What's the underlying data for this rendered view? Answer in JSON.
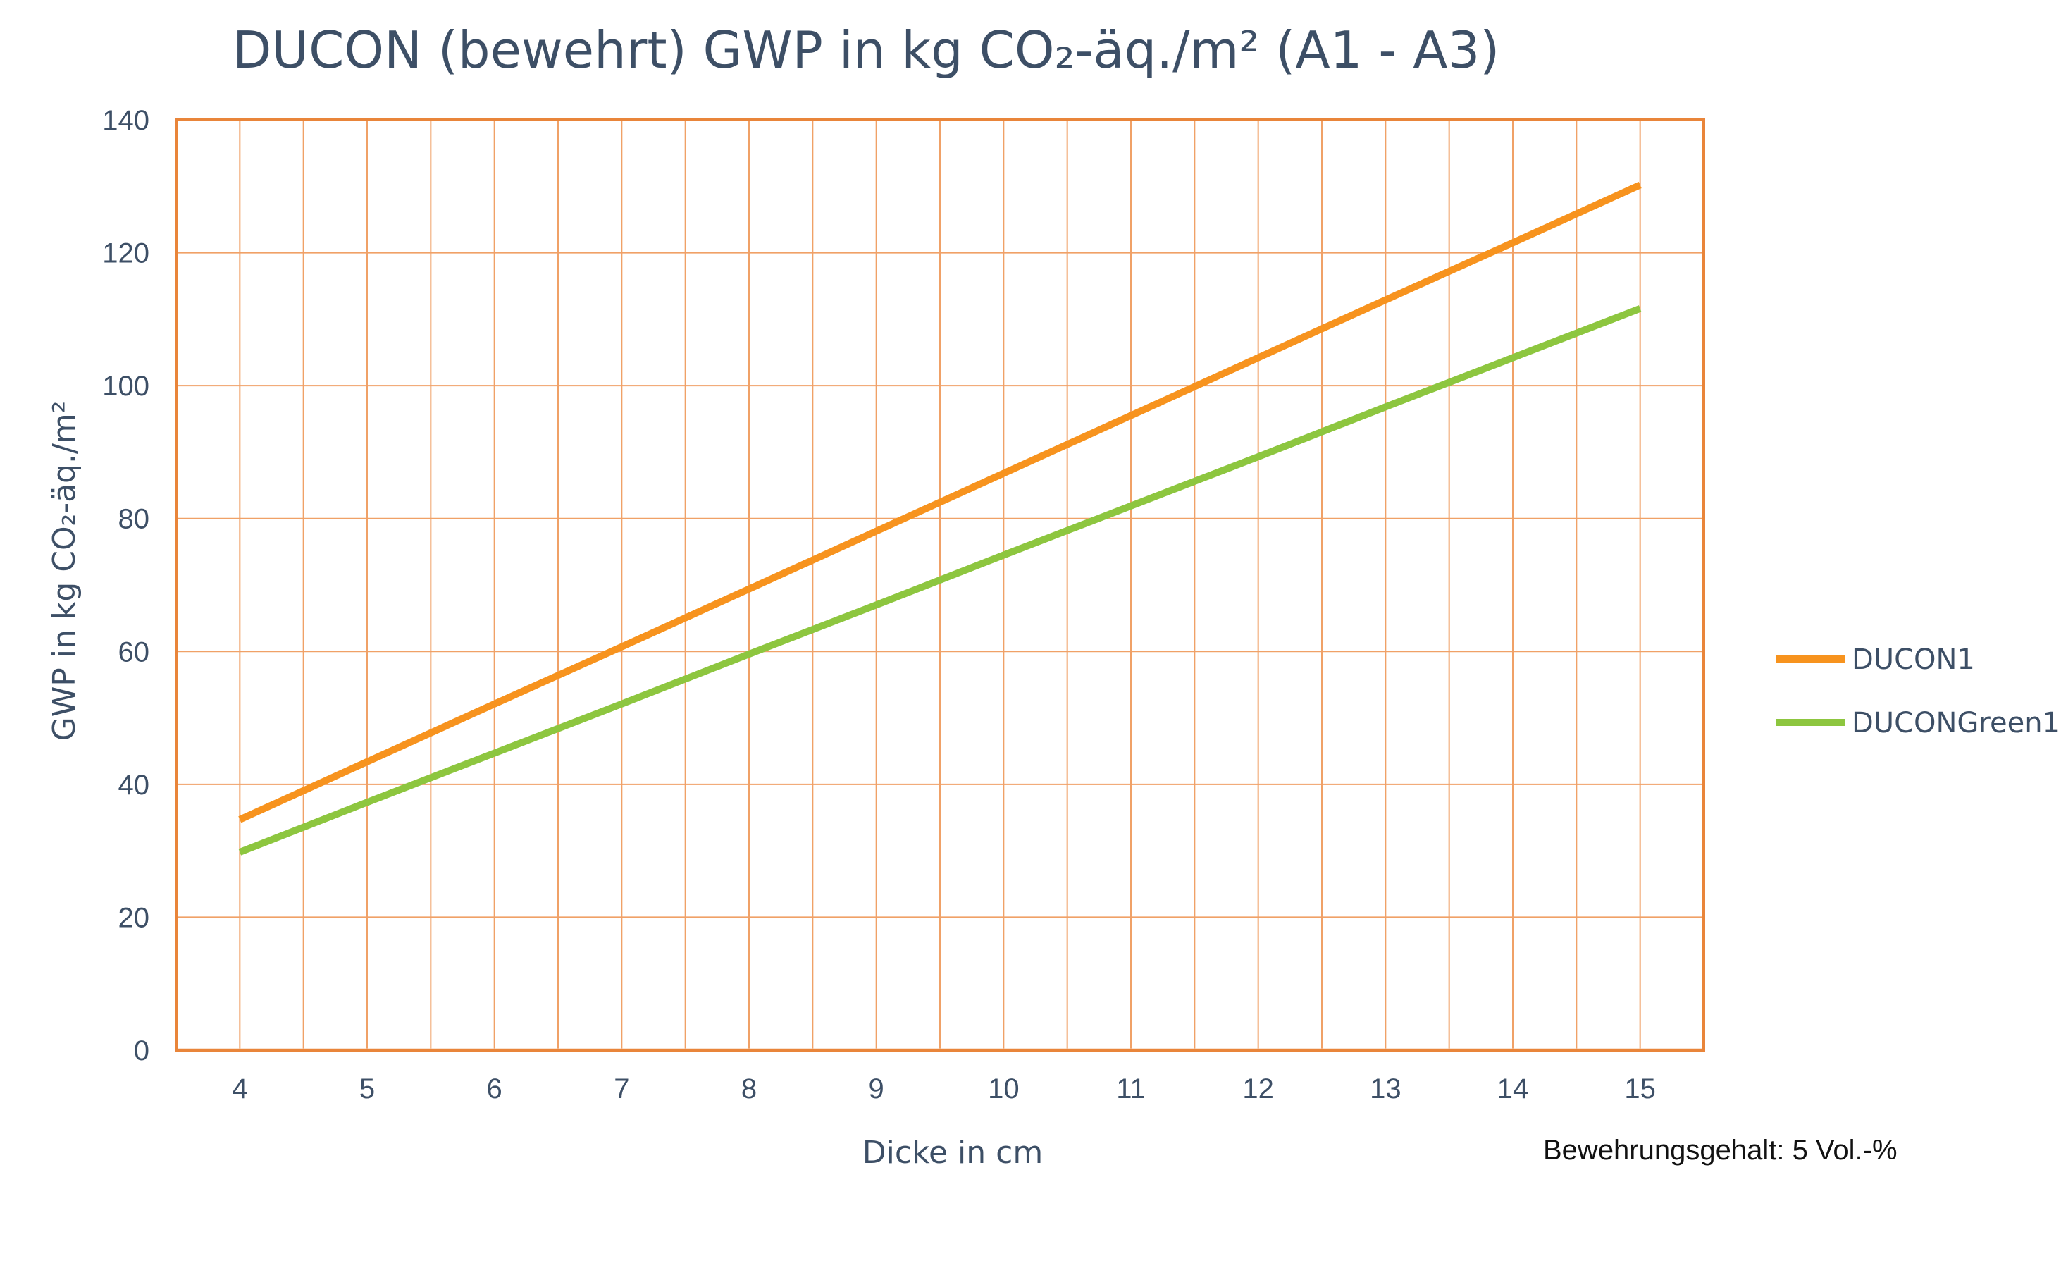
{
  "chart_data": {
    "type": "line",
    "title": "DUCON (bewehrt) GWP in kg CO₂-äq./m² (A1 - A3)",
    "xlabel": "Dicke in cm",
    "ylabel": "GWP in kg CO₂-äq./m²",
    "x": [
      4,
      5,
      6,
      7,
      8,
      9,
      10,
      11,
      12,
      13,
      14,
      15
    ],
    "xlim": [
      3.5,
      15.5
    ],
    "ylim": [
      0,
      140
    ],
    "yticks": [
      0,
      20,
      40,
      60,
      80,
      100,
      120,
      140
    ],
    "grid": true,
    "legend_position": "right",
    "series": [
      {
        "name": "DUCON1",
        "color": "#f7931e",
        "values": [
          34.7,
          43.4,
          52.1,
          60.7,
          69.4,
          78.1,
          86.8,
          95.5,
          104.2,
          112.9,
          121.5,
          130.2
        ]
      },
      {
        "name": "DUCONGreen1",
        "color": "#8dc63f",
        "values": [
          29.8,
          37.3,
          44.7,
          52.1,
          59.6,
          67.0,
          74.5,
          81.9,
          89.3,
          96.8,
          104.2,
          111.6
        ]
      }
    ],
    "annotation": "Bewehrungsgehalt: 5 Vol.-%"
  },
  "colors": {
    "frame": "#e9853a",
    "grid": "#f0a167",
    "baseline": "#f3c4a2",
    "text": "#3d4f66"
  }
}
